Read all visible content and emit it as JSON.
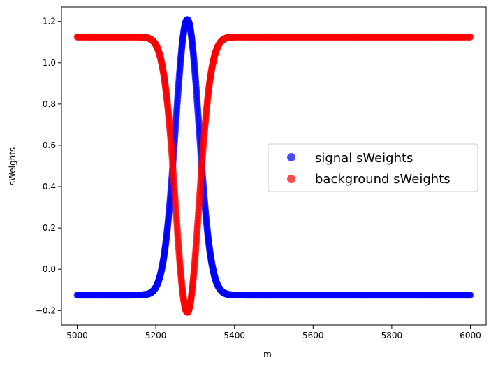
{
  "chart_data": {
    "type": "scatter",
    "xlabel": "m",
    "ylabel": "sWeights",
    "xlim": [
      4960,
      6040
    ],
    "ylim": [
      -0.27,
      1.27
    ],
    "xticks": [
      5000,
      5200,
      5400,
      5600,
      5800,
      6000
    ],
    "yticks": [
      -0.2,
      0.0,
      0.2,
      0.4,
      0.6,
      0.8,
      1.0,
      1.2
    ],
    "ytick_labels": [
      "−0.2",
      "0.0",
      "0.2",
      "0.4",
      "0.6",
      "0.8",
      "1.0",
      "1.2"
    ],
    "grid": false,
    "legend_position": "center-right",
    "x_range": [
      5000,
      6000
    ],
    "model": {
      "mean": 5280,
      "sigma": 30,
      "baseline_signal": -0.125,
      "peak_signal": 1.208,
      "baseline_background": 1.125,
      "dip_background": -0.208
    },
    "series": [
      {
        "name": "signal sWeights",
        "color": "#0000ff",
        "shape": "gaussian-peak"
      },
      {
        "name": "background sWeights",
        "color": "#ff0000",
        "shape": "gaussian-dip"
      }
    ]
  }
}
